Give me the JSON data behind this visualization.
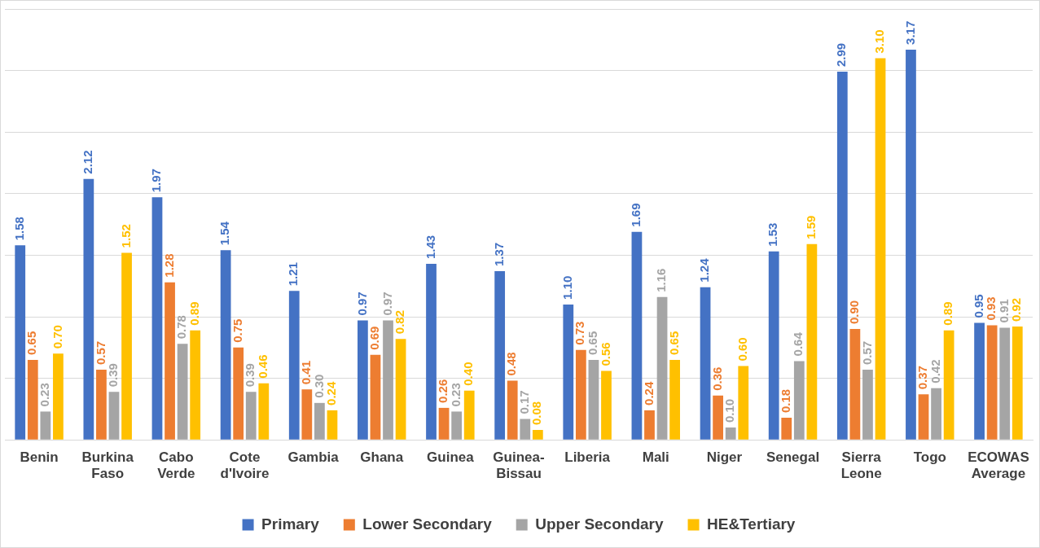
{
  "chart_data": {
    "type": "bar",
    "categories": [
      "Benin",
      "Burkina Faso",
      "Cabo Verde",
      "Cote d'Ivoire",
      "Gambia",
      "Ghana",
      "Guinea",
      "Guinea-Bissau",
      "Liberia",
      "Mali",
      "Niger",
      "Senegal",
      "Sierra Leone",
      "Togo",
      "ECOWAS Average"
    ],
    "series": [
      {
        "name": "Primary",
        "color": "#4472c4",
        "values": [
          1.58,
          2.12,
          1.97,
          1.54,
          1.21,
          0.97,
          1.43,
          1.37,
          1.1,
          1.69,
          1.24,
          1.53,
          2.99,
          3.17,
          0.95
        ],
        "value_labels": [
          "1.58",
          "2.12",
          "1.97",
          "1.54",
          "1.21",
          "0.97",
          "1.43",
          "1.37",
          "1.10",
          "1.69",
          "1.24",
          "1.53",
          "2.99",
          "3.17",
          "0.95"
        ]
      },
      {
        "name": "Lower Secondary",
        "color": "#ed7d31",
        "values": [
          0.65,
          0.57,
          1.28,
          0.75,
          0.41,
          0.69,
          0.26,
          0.48,
          0.73,
          0.24,
          0.36,
          0.18,
          0.9,
          0.37,
          0.93
        ],
        "value_labels": [
          "0.65",
          "0.57",
          "1.28",
          "0.75",
          "0.41",
          "0.69",
          "0.26",
          "0.48",
          "0.73",
          "0.24",
          "0.36",
          "0.18",
          "0.90",
          "0.37",
          "0.93"
        ]
      },
      {
        "name": "Upper Secondary",
        "color": "#a5a5a5",
        "values": [
          0.23,
          0.39,
          0.78,
          0.39,
          0.3,
          0.97,
          0.23,
          0.17,
          0.65,
          1.16,
          0.1,
          0.64,
          0.57,
          0.42,
          0.91
        ],
        "value_labels": [
          "0.23",
          "0.39",
          "0.78",
          "0.39",
          "0.30",
          "0.97",
          "0.23",
          "0.17",
          "0.65",
          "1.16",
          "0.10",
          "0.64",
          "0.57",
          "0.42",
          "0.91"
        ]
      },
      {
        "name": "HE&Tertiary",
        "color": "#ffc000",
        "values": [
          0.7,
          1.52,
          0.89,
          0.46,
          0.24,
          0.82,
          0.4,
          0.08,
          0.56,
          0.65,
          0.6,
          1.59,
          3.1,
          0.89,
          0.92
        ],
        "value_labels": [
          "0.70",
          "1.52",
          "0.89",
          "0.46",
          "0.24",
          "0.82",
          "0.40",
          "0.08",
          "0.56",
          "0.65",
          "0.60",
          "1.59",
          "3.10",
          "0.89",
          "0.92"
        ]
      }
    ],
    "tick_labels": "x",
    "grid": "y",
    "legend": "bottom"
  }
}
